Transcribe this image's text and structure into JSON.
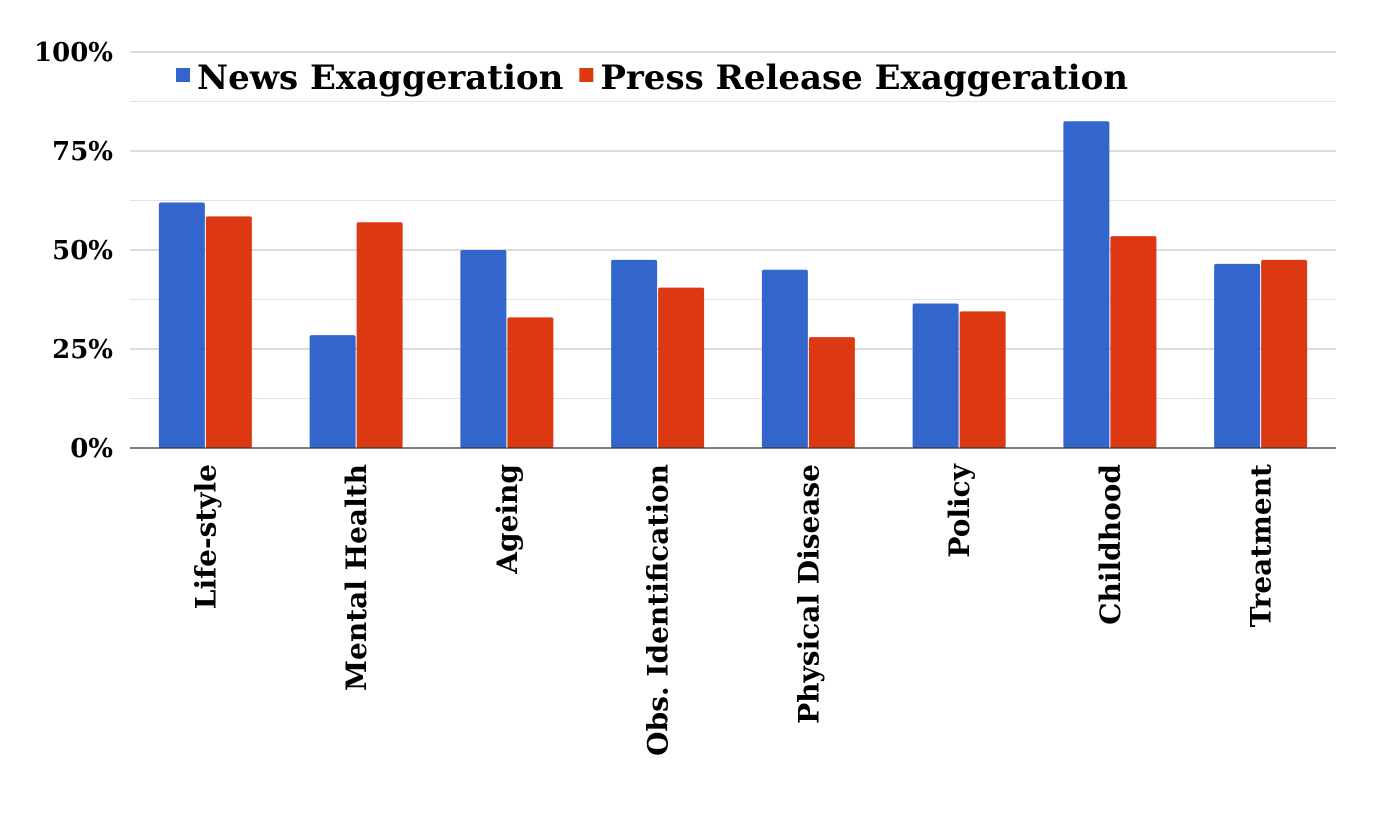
{
  "chart_data": {
    "type": "bar",
    "categories": [
      "Life-style",
      "Mental Health",
      "Ageing",
      "Obs. Identification",
      "Physical Disease",
      "Policy",
      "Childhood",
      "Treatment"
    ],
    "series": [
      {
        "name": "News Exaggeration",
        "color": "#3366cc",
        "values": [
          62,
          28.5,
          50,
          47.5,
          45,
          36.5,
          82.5,
          46.5
        ]
      },
      {
        "name": "Press Release Exaggeration",
        "color": "#dc3912",
        "values": [
          58.5,
          57,
          33,
          40.5,
          28,
          34.5,
          53.5,
          47.5
        ]
      }
    ],
    "ylim": [
      0,
      100
    ],
    "yticks": [
      0,
      25,
      50,
      75,
      100
    ],
    "ytick_labels": [
      "0%",
      "25%",
      "50%",
      "75%",
      "100%"
    ],
    "minor_gridlines": [
      12.5,
      37.5,
      62.5,
      87.5
    ],
    "grid": true,
    "legend_position": "top-left"
  }
}
